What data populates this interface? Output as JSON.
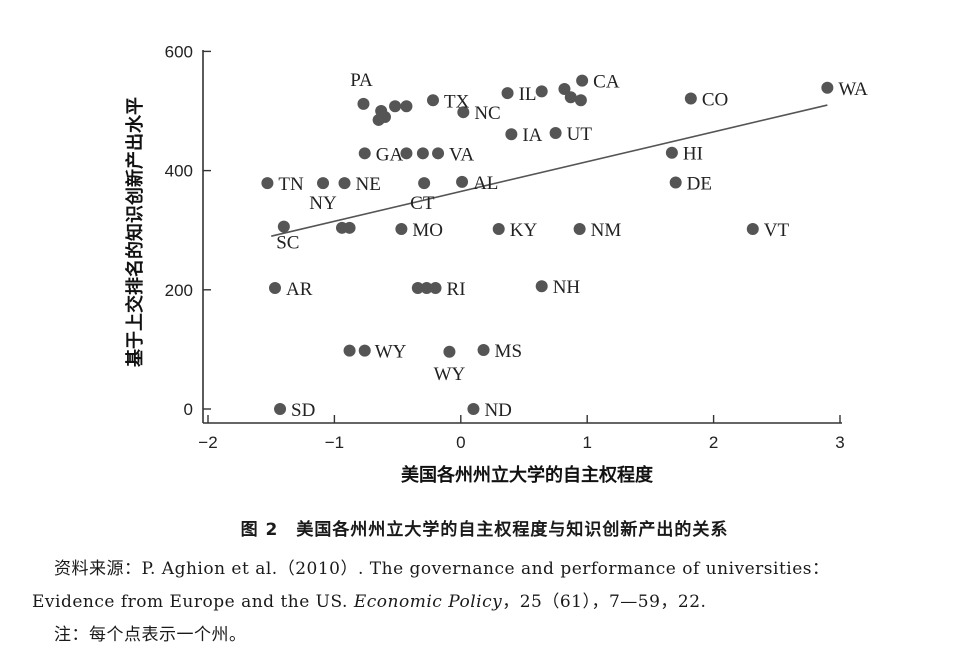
{
  "chart_data": {
    "type": "scatter",
    "xlabel": "美国各州州立大学的自主权程度",
    "ylabel": "基于上交排名的知识创新产出水平",
    "xlim": [
      -2.05,
      3.05
    ],
    "ylim": [
      -15,
      610
    ],
    "x_ticks": [
      "−2",
      "−1",
      "0",
      "1",
      "2",
      "3"
    ],
    "x_tick_values": [
      -2,
      -1,
      0,
      1,
      2,
      3
    ],
    "y_ticks": [
      "0",
      "200",
      "400",
      "600"
    ],
    "y_tick_values": [
      0,
      200,
      400,
      600
    ],
    "grid": false,
    "points": [
      {
        "x": -0.77,
        "y": 512,
        "label": "PA"
      },
      {
        "x": -0.63,
        "y": 500,
        "label": ""
      },
      {
        "x": -0.65,
        "y": 485,
        "label": ""
      },
      {
        "x": -0.6,
        "y": 490,
        "label": ""
      },
      {
        "x": -0.52,
        "y": 508,
        "label": ""
      },
      {
        "x": -0.43,
        "y": 508,
        "label": ""
      },
      {
        "x": -0.22,
        "y": 518,
        "label": "TX"
      },
      {
        "x": 0.02,
        "y": 498,
        "label": "NC"
      },
      {
        "x": 0.37,
        "y": 530,
        "label": "IL"
      },
      {
        "x": 0.64,
        "y": 533,
        "label": ""
      },
      {
        "x": 0.82,
        "y": 537,
        "label": ""
      },
      {
        "x": 0.87,
        "y": 523,
        "label": ""
      },
      {
        "x": 0.95,
        "y": 518,
        "label": ""
      },
      {
        "x": 0.96,
        "y": 551,
        "label": "CA"
      },
      {
        "x": 1.82,
        "y": 521,
        "label": "CO"
      },
      {
        "x": 2.9,
        "y": 539,
        "label": "WA"
      },
      {
        "x": 0.4,
        "y": 461,
        "label": "IA"
      },
      {
        "x": 0.75,
        "y": 463,
        "label": "UT"
      },
      {
        "x": 1.67,
        "y": 430,
        "label": "HI"
      },
      {
        "x": -0.76,
        "y": 429,
        "label": "GA"
      },
      {
        "x": -0.43,
        "y": 429,
        "label": ""
      },
      {
        "x": -0.3,
        "y": 429,
        "label": ""
      },
      {
        "x": -0.18,
        "y": 429,
        "label": "VA"
      },
      {
        "x": -1.53,
        "y": 379,
        "label": "TN"
      },
      {
        "x": -1.09,
        "y": 379,
        "label": "NY"
      },
      {
        "x": -0.92,
        "y": 379,
        "label": "NE"
      },
      {
        "x": -0.29,
        "y": 379,
        "label": "CT"
      },
      {
        "x": 0.01,
        "y": 381,
        "label": "AL"
      },
      {
        "x": 1.7,
        "y": 380,
        "label": "DE"
      },
      {
        "x": -1.4,
        "y": 306,
        "label": "SC"
      },
      {
        "x": -0.94,
        "y": 304,
        "label": ""
      },
      {
        "x": -0.88,
        "y": 304,
        "label": ""
      },
      {
        "x": -0.47,
        "y": 302,
        "label": "MO"
      },
      {
        "x": 0.3,
        "y": 302,
        "label": "KY"
      },
      {
        "x": 0.94,
        "y": 302,
        "label": "NM"
      },
      {
        "x": 2.31,
        "y": 302,
        "label": "VT"
      },
      {
        "x": -1.47,
        "y": 203,
        "label": "AR"
      },
      {
        "x": -0.34,
        "y": 203,
        "label": ""
      },
      {
        "x": -0.27,
        "y": 203,
        "label": ""
      },
      {
        "x": -0.2,
        "y": 203,
        "label": "RI"
      },
      {
        "x": 0.64,
        "y": 206,
        "label": "NH"
      },
      {
        "x": -0.88,
        "y": 98,
        "label": ""
      },
      {
        "x": -0.76,
        "y": 98,
        "label": "WY"
      },
      {
        "x": -0.09,
        "y": 96,
        "label": "WY"
      },
      {
        "x": 0.18,
        "y": 99,
        "label": "MS"
      },
      {
        "x": -1.43,
        "y": 0,
        "label": "SD"
      },
      {
        "x": 0.1,
        "y": 0,
        "label": "ND"
      }
    ],
    "fit_line": {
      "x": [
        -1.5,
        2.9
      ],
      "y": [
        290,
        510
      ]
    }
  },
  "caption": {
    "figure_number": "图 2",
    "title": "美国各州州立大学的自主权程度与知识创新产出的关系"
  },
  "source": {
    "prefix": "资料来源：P. Aghion et al.（2010）. The governance and performance of universities：",
    "line2_pre": "Evidence from Europe and the US. ",
    "journal": "Economic Policy",
    "line2_post": "，25（61），7—59，22.",
    "note": "注：每个点表示一个州。"
  }
}
